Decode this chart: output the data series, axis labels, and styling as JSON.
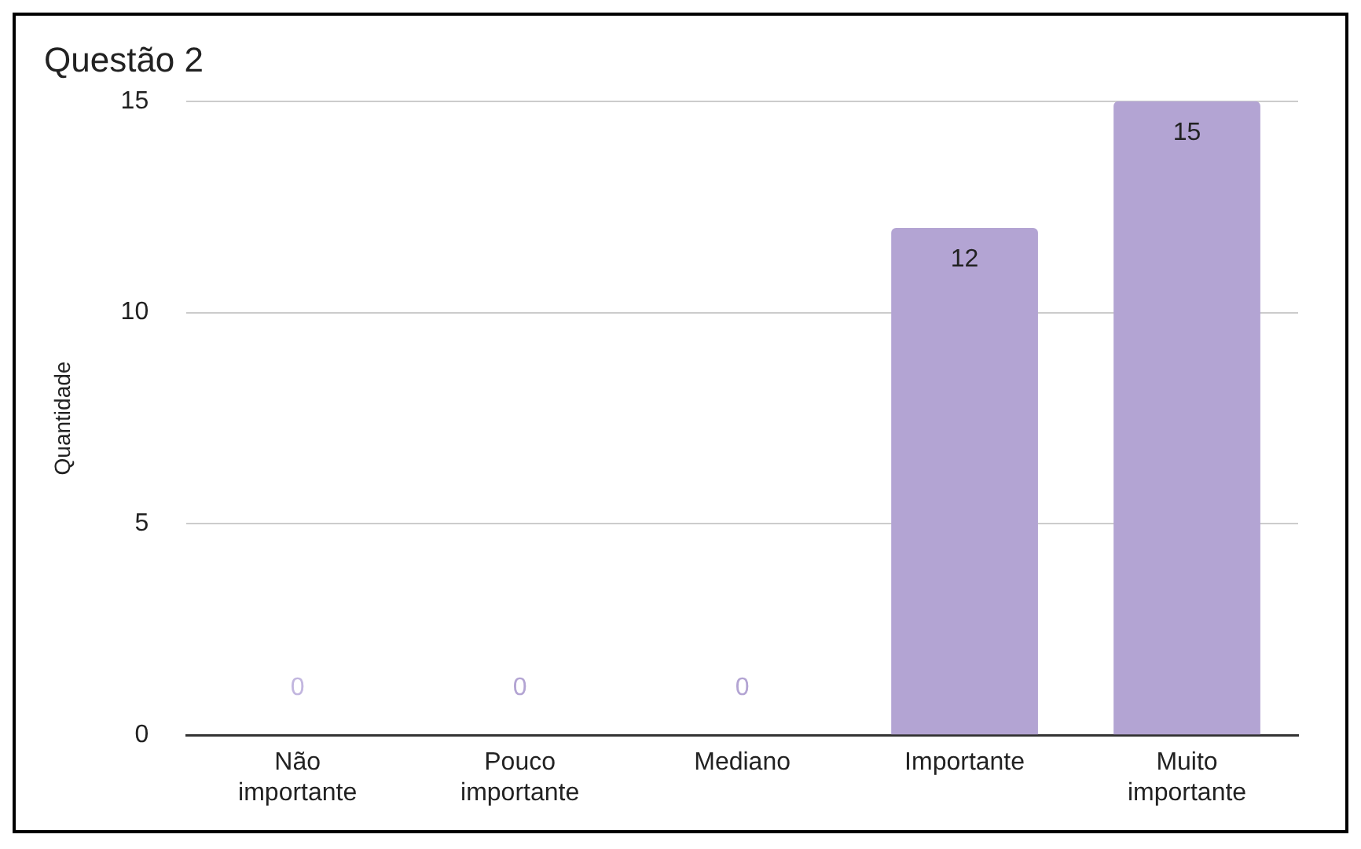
{
  "chart_data": {
    "type": "bar",
    "title": "Questão 2",
    "ylabel": "Quantidade",
    "categories": [
      "Não importante",
      "Pouco importante",
      "Mediano",
      "Importante",
      "Muito importante"
    ],
    "values": [
      0,
      0,
      0,
      12,
      15
    ],
    "colors": [
      "#c2b6df",
      "#b3a4d3",
      "#b3a4d3",
      "#b3a4d3",
      "#b3a4d3"
    ],
    "ylim": [
      0,
      15
    ],
    "yticks": [
      0,
      5,
      10,
      15
    ],
    "grid": "y",
    "data_labels": true,
    "legend": false
  }
}
